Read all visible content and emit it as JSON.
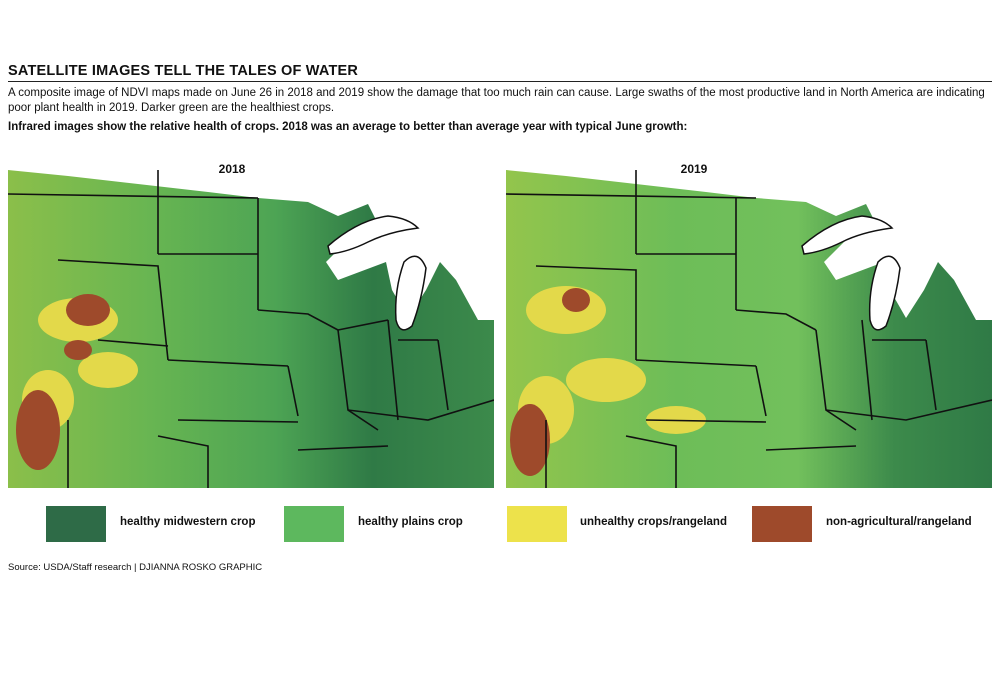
{
  "title": "SATELLITE IMAGES TELL THE TALES OF WATER",
  "lede": "A composite image of NDVI maps made on June 26 in 2018 and 2019 show the damage that too much rain can cause. Large swaths of the most productive land in North America are indicating poor plant health in 2019. Darker green are the healthiest crops.",
  "subhead": "Infrared images show the relative health of crops. 2018 was an average to better than average year with typical June growth:",
  "maps": [
    {
      "year_label": "2018"
    },
    {
      "year_label": "2019"
    }
  ],
  "legend": [
    {
      "label": "healthy midwestern crop",
      "color": "#2e6b47"
    },
    {
      "label": "healthy plains crop",
      "color": "#5db85e"
    },
    {
      "label": "unhealthy crops/rangeland",
      "color": "#ede24b"
    },
    {
      "label": "non-agricultural/rangeland",
      "color": "#9e4a2b"
    }
  ],
  "source": "Source: USDA/Staff research  |  DJIANNA ROSKO GRAPHIC"
}
